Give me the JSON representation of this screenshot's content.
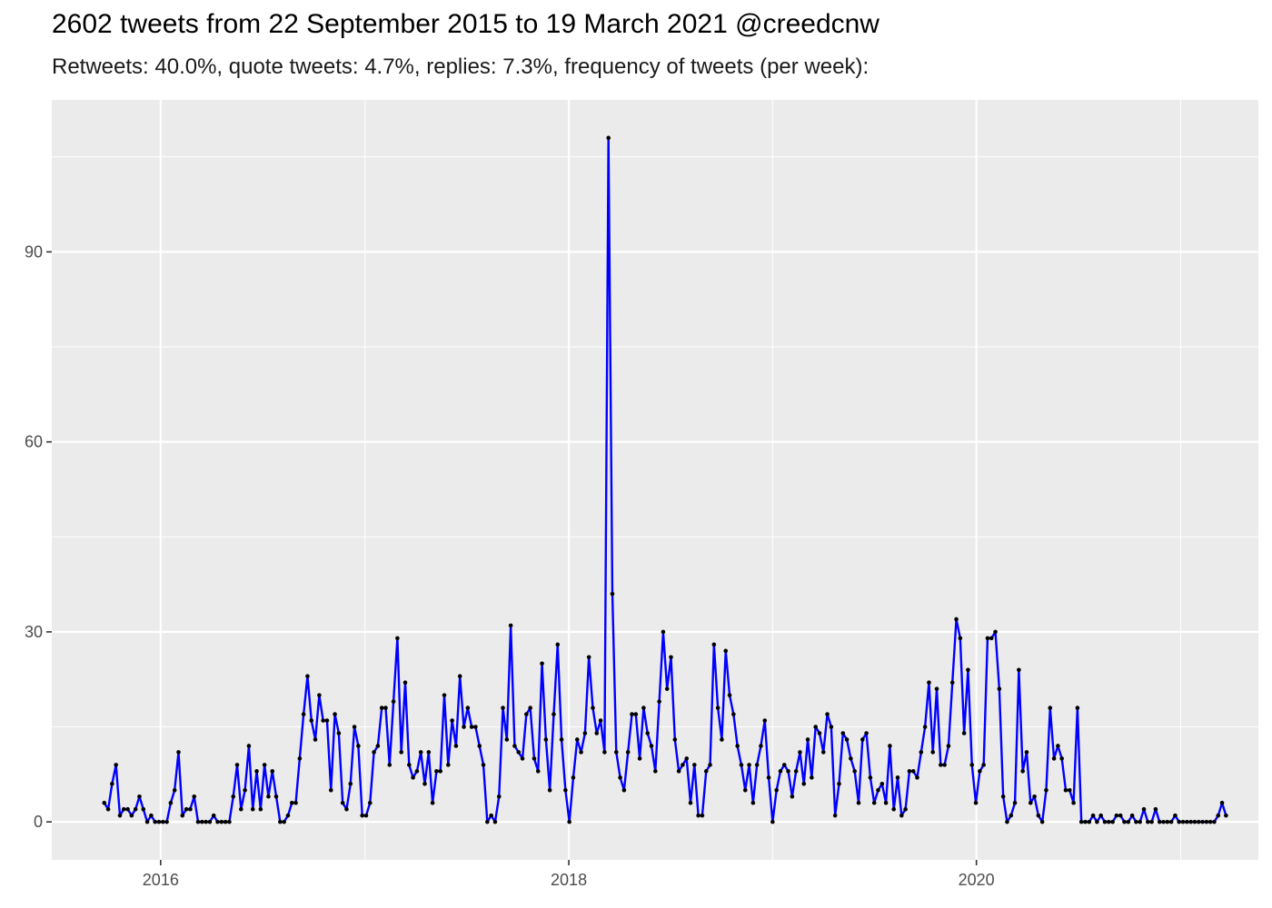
{
  "title": "2602 tweets from 22 September 2015 to 19 March 2021 @creedcnw",
  "subtitle": "Retweets: 40.0%, quote tweets: 4.7%, replies: 7.3%, frequency of tweets (per week):",
  "chart_data": {
    "type": "line",
    "title": "2602 tweets from 22 September 2015 to 19 March 2021 @creedcnw",
    "subtitle": "Retweets: 40.0%, quote tweets: 4.7%, replies: 7.3%, frequency of tweets (per week):",
    "xlabel": "",
    "ylabel": "",
    "x_start": "2015-09-22",
    "x_interval": "week",
    "xlim": [
      "2015-06-20",
      "2021-05-20"
    ],
    "ylim": [
      -6,
      114
    ],
    "x_ticks": [
      "2016",
      "2018",
      "2020"
    ],
    "y_ticks": [
      0,
      30,
      60,
      90
    ],
    "grid": true,
    "colors": {
      "line": "#0000ff",
      "points": "#000000",
      "panel": "#ebebeb",
      "grid": "#ffffff"
    },
    "series": [
      {
        "values": [
          3,
          2,
          6,
          9,
          1,
          2,
          2,
          1,
          2,
          4,
          2,
          0,
          1,
          0,
          0,
          0,
          0,
          3,
          5,
          11,
          1,
          2,
          2,
          4,
          0,
          0,
          0,
          0,
          1,
          0,
          0,
          0,
          0,
          4,
          9,
          2,
          5,
          12,
          2,
          8,
          2,
          9,
          4,
          8,
          4,
          0,
          0,
          1,
          3,
          3,
          10,
          17,
          23,
          16,
          13,
          20,
          16,
          16,
          5,
          17,
          14,
          3,
          2,
          6,
          15,
          12,
          1,
          1,
          3,
          11,
          12,
          18,
          18,
          9,
          19,
          29,
          11,
          22,
          9,
          7,
          8,
          11,
          6,
          11,
          3,
          8,
          8,
          20,
          9,
          16,
          12,
          23,
          15,
          18,
          15,
          15,
          12,
          9,
          0,
          1,
          0,
          4,
          18,
          13,
          31,
          12,
          11,
          10,
          17,
          18,
          10,
          8,
          25,
          13,
          5,
          17,
          28,
          13,
          5,
          0,
          7,
          13,
          11,
          14,
          26,
          18,
          14,
          16,
          11,
          108,
          36,
          11,
          7,
          5,
          11,
          17,
          17,
          10,
          18,
          14,
          12,
          8,
          19,
          30,
          21,
          26,
          13,
          8,
          9,
          10,
          3,
          9,
          1,
          1,
          8,
          9,
          28,
          18,
          13,
          27,
          20,
          17,
          12,
          9,
          5,
          9,
          3,
          9,
          12,
          16,
          7,
          0,
          5,
          8,
          9,
          8,
          4,
          8,
          11,
          6,
          13,
          7,
          15,
          14,
          11,
          17,
          15,
          1,
          6,
          14,
          13,
          10,
          8,
          3,
          13,
          14,
          7,
          3,
          5,
          6,
          3,
          12,
          2,
          7,
          1,
          2,
          8,
          8,
          7,
          11,
          15,
          22,
          11,
          21,
          9,
          9,
          12,
          22,
          32,
          29,
          14,
          24,
          9,
          3,
          8,
          9,
          29,
          29,
          30,
          21,
          4,
          0,
          1,
          3,
          24,
          8,
          11,
          3,
          4,
          1,
          0,
          5,
          18,
          10,
          12,
          10,
          5,
          5,
          3,
          18,
          0,
          0,
          0,
          1,
          0,
          1,
          0,
          0,
          0,
          1,
          1,
          0,
          0,
          1,
          0,
          0,
          2,
          0,
          0,
          2,
          0,
          0,
          0,
          0,
          1,
          0,
          0,
          0,
          0,
          0,
          0,
          0,
          0,
          0,
          0,
          1,
          3,
          1
        ]
      }
    ]
  }
}
